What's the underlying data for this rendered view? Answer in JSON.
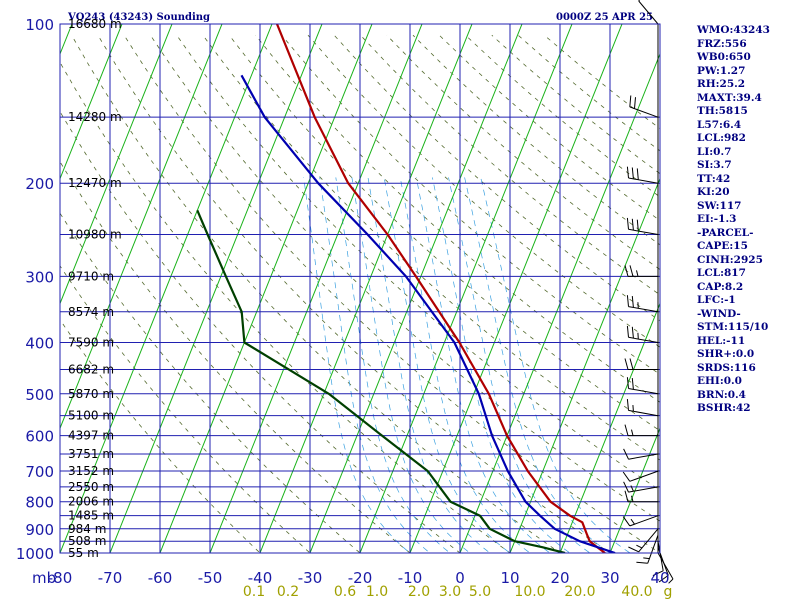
{
  "header": {
    "station": "VQ243 (43243) Sounding",
    "time": "0000Z 25 APR 25"
  },
  "indices": [
    "WMO:43243",
    "FRZ:556",
    "WB0:650",
    "PW:1.27",
    "RH:25.2",
    "MAXT:39.4",
    "TH:5815",
    "L57:6.4",
    "LCL:982",
    "LI:0.7",
    "SI:3.7",
    "TT:42",
    "KI:20",
    "SW:117",
    "EI:-1.3",
    "-PARCEL-",
    "CAPE:15",
    "CINH:2925",
    "LCL:817",
    "CAP:8.2",
    "LFC:-1",
    "-WIND-",
    "STM:115/10",
    "HEL:-11",
    "SHR+:0.0",
    "SRDS:116",
    "EHI:0.0",
    "BRN:0.4",
    "BSHR:42"
  ],
  "chart_data": {
    "type": "line",
    "chart_kind": "skew-T log-P sounding",
    "pressure_axis": {
      "unit_label": "mb",
      "scale": "log",
      "range": [
        1000,
        100
      ],
      "ticks": [
        "100",
        "200",
        "300",
        "400",
        "500",
        "600",
        "700",
        "800",
        "900",
        "1000"
      ]
    },
    "temperature_axis": {
      "range": [
        -80,
        40
      ],
      "ticks": [
        "-80",
        "-70",
        "-60",
        "-50",
        "-40",
        "-30",
        "-20",
        "-10",
        "0",
        "10",
        "20",
        "30",
        "40"
      ]
    },
    "mixing_ratio_labels": [
      "0.1",
      "0.2",
      "0.6",
      "1.0",
      "2.0",
      "3.0",
      "5.0",
      "10.0",
      "20.0",
      "40.0",
      "g"
    ],
    "height_labels": [
      {
        "p": 100,
        "text": "16680 m"
      },
      {
        "p": 150,
        "text": "14280 m"
      },
      {
        "p": 200,
        "text": "12470 m"
      },
      {
        "p": 250,
        "text": "10980 m"
      },
      {
        "p": 300,
        "text": "9710 m"
      },
      {
        "p": 350,
        "text": "8574 m"
      },
      {
        "p": 400,
        "text": "7590 m"
      },
      {
        "p": 450,
        "text": "6682 m"
      },
      {
        "p": 500,
        "text": "5870 m"
      },
      {
        "p": 550,
        "text": "5100 m"
      },
      {
        "p": 600,
        "text": "4397 m"
      },
      {
        "p": 650,
        "text": "3751 m"
      },
      {
        "p": 700,
        "text": "3152 m"
      },
      {
        "p": 750,
        "text": "2550 m"
      },
      {
        "p": 800,
        "text": "2006 m"
      },
      {
        "p": 850,
        "text": "1485 m"
      },
      {
        "p": 900,
        "text": "984 m"
      },
      {
        "p": 950,
        "text": "508 m"
      },
      {
        "p": 1000,
        "text": "55 m"
      }
    ],
    "series": [
      {
        "color": "#b00000",
        "points": [
          {
            "p": 1000,
            "t": 29
          },
          {
            "p": 975,
            "t": 27
          },
          {
            "p": 950,
            "t": 25
          },
          {
            "p": 925,
            "t": 24
          },
          {
            "p": 875,
            "t": 22
          },
          {
            "p": 850,
            "t": 19
          },
          {
            "p": 800,
            "t": 14
          },
          {
            "p": 700,
            "t": 7
          },
          {
            "p": 600,
            "t": 0
          },
          {
            "p": 500,
            "t": -7
          },
          {
            "p": 400,
            "t": -17
          },
          {
            "p": 300,
            "t": -31
          },
          {
            "p": 250,
            "t": -40
          },
          {
            "p": 200,
            "t": -52
          },
          {
            "p": 150,
            "t": -64
          },
          {
            "p": 100,
            "t": -79
          }
        ]
      },
      {
        "color": "#0000b0",
        "points": [
          {
            "p": 1000,
            "t": 31
          },
          {
            "p": 950,
            "t": 23
          },
          {
            "p": 900,
            "t": 17
          },
          {
            "p": 850,
            "t": 13
          },
          {
            "p": 800,
            "t": 9
          },
          {
            "p": 700,
            "t": 3
          },
          {
            "p": 600,
            "t": -3
          },
          {
            "p": 500,
            "t": -9
          },
          {
            "p": 400,
            "t": -18
          },
          {
            "p": 300,
            "t": -33
          },
          {
            "p": 250,
            "t": -44
          },
          {
            "p": 200,
            "t": -58
          },
          {
            "p": 150,
            "t": -74
          },
          {
            "p": 125,
            "t": -82
          }
        ]
      },
      {
        "color": "#004000",
        "points": [
          {
            "p": 1000,
            "t": 21
          },
          {
            "p": 975,
            "t": 16
          },
          {
            "p": 950,
            "t": 10
          },
          {
            "p": 900,
            "t": 4
          },
          {
            "p": 850,
            "t": 1
          },
          {
            "p": 800,
            "t": -6
          },
          {
            "p": 700,
            "t": -13
          },
          {
            "p": 600,
            "t": -25
          },
          {
            "p": 500,
            "t": -39
          },
          {
            "p": 400,
            "t": -60
          },
          {
            "p": 350,
            "t": -63
          },
          {
            "p": 300,
            "t": -69
          },
          {
            "p": 250,
            "t": -76
          },
          {
            "p": 225,
            "t": -80
          }
        ]
      }
    ],
    "wind_barbs": [
      {
        "p": 1000,
        "dir": 150,
        "spd": 5
      },
      {
        "p": 975,
        "dir": 160,
        "spd": 10
      },
      {
        "p": 950,
        "dir": 170,
        "spd": 10
      },
      {
        "p": 925,
        "dir": 200,
        "spd": 15
      },
      {
        "p": 900,
        "dir": 220,
        "spd": 15
      },
      {
        "p": 850,
        "dir": 250,
        "spd": 15
      },
      {
        "p": 800,
        "dir": 270,
        "spd": 15
      },
      {
        "p": 750,
        "dir": 260,
        "spd": 15
      },
      {
        "p": 700,
        "dir": 250,
        "spd": 10
      },
      {
        "p": 650,
        "dir": 260,
        "spd": 10
      },
      {
        "p": 600,
        "dir": 270,
        "spd": 15
      },
      {
        "p": 550,
        "dir": 280,
        "spd": 15
      },
      {
        "p": 500,
        "dir": 280,
        "spd": 20
      },
      {
        "p": 450,
        "dir": 270,
        "spd": 20
      },
      {
        "p": 400,
        "dir": 280,
        "spd": 25
      },
      {
        "p": 350,
        "dir": 280,
        "spd": 25
      },
      {
        "p": 300,
        "dir": 270,
        "spd": 25
      },
      {
        "p": 250,
        "dir": 280,
        "spd": 30
      },
      {
        "p": 200,
        "dir": 280,
        "spd": 30
      },
      {
        "p": 150,
        "dir": 290,
        "spd": 20
      },
      {
        "p": 100,
        "dir": 320,
        "spd": 10
      }
    ]
  }
}
